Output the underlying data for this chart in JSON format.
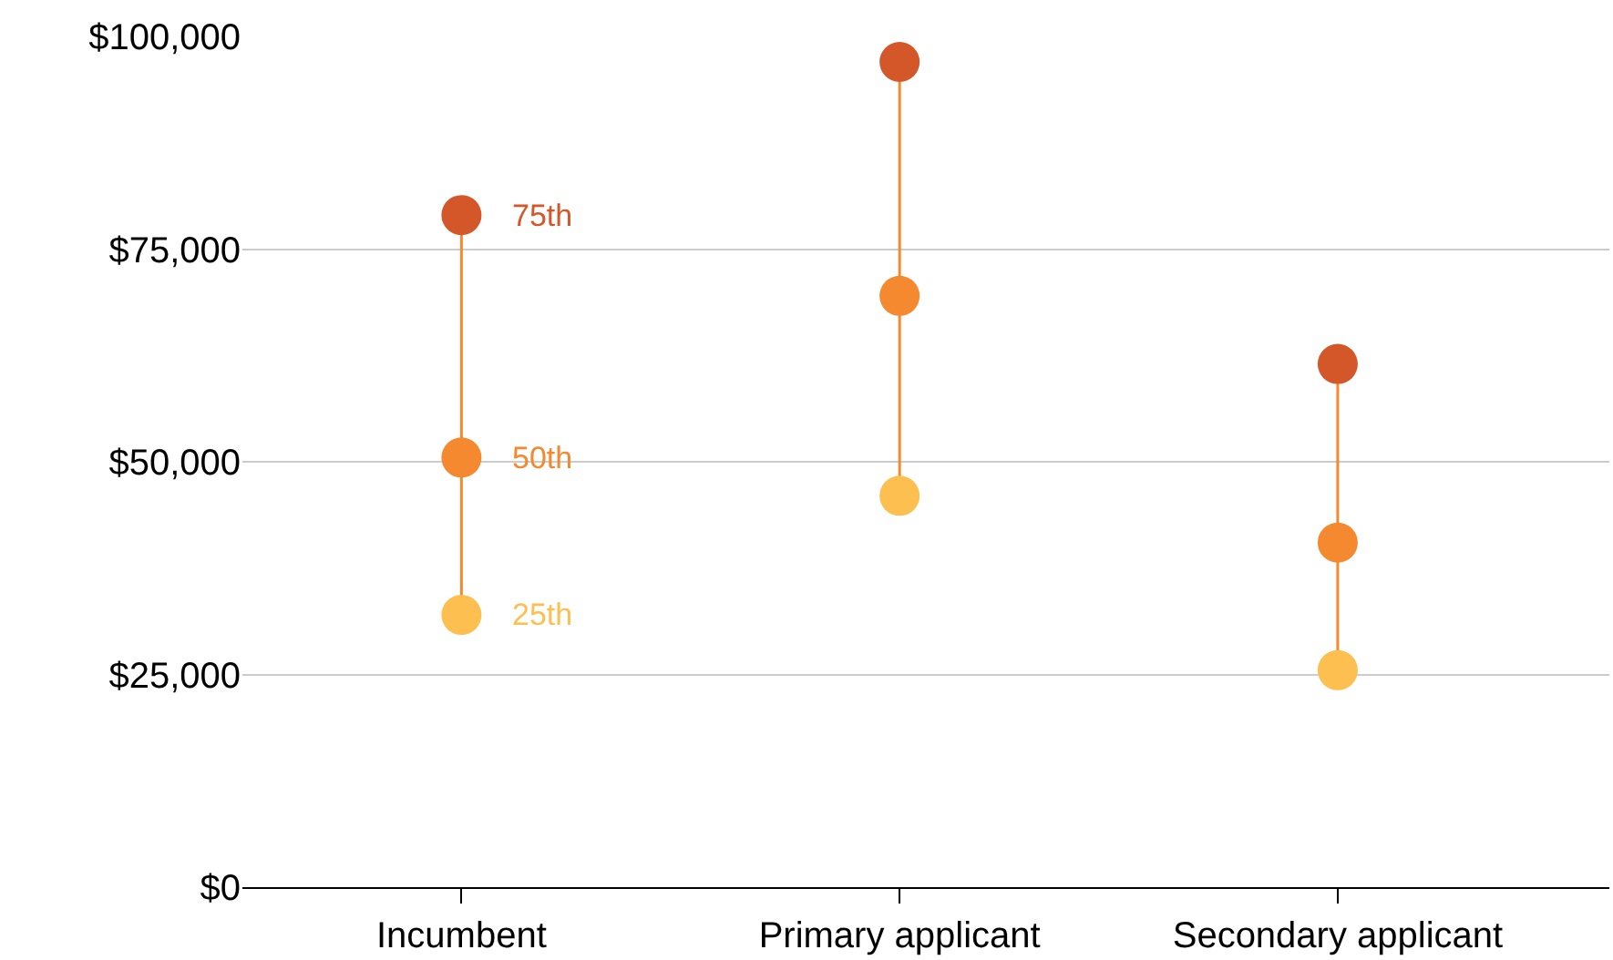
{
  "chart_data": {
    "type": "scatter",
    "categories": [
      "Incumbent",
      "Primary applicant",
      "Secondary applicant"
    ],
    "series": [
      {
        "type": "line",
        "color": "#f5892f",
        "x": [
          "Incumbent",
          "Incumbent"
        ],
        "values": [
          32000,
          79000
        ],
        "marker": "none"
      },
      {
        "type": "line",
        "color": "#f5892f",
        "x": [
          "Primary applicant",
          "Primary applicant"
        ],
        "values": [
          46000,
          97000
        ],
        "marker": "none"
      },
      {
        "type": "line",
        "color": "#f5892f",
        "x": [
          "Secondary applicant",
          "Secondary applicant"
        ],
        "values": [
          25500,
          61500
        ],
        "marker": "none"
      },
      {
        "name": "75th",
        "color": "#d4572a",
        "values": [
          79000,
          97000,
          61500
        ]
      },
      {
        "name": "50th",
        "color": "#f5892f",
        "values": [
          50500,
          69500,
          40500
        ]
      },
      {
        "name": "25th",
        "color": "#fdbf4f",
        "values": [
          32000,
          46000,
          25500
        ]
      }
    ],
    "ylim": [
      0,
      100000
    ],
    "yticks": [
      {
        "value": 0,
        "label": "$0"
      },
      {
        "value": 25000,
        "label": "$25,000"
      },
      {
        "value": 50000,
        "label": "$50,000"
      },
      {
        "value": 75000,
        "label": "$75,000"
      },
      {
        "value": 100000,
        "label": "$100,000"
      }
    ],
    "grid": "y",
    "marker": "circle",
    "legend": false
  }
}
